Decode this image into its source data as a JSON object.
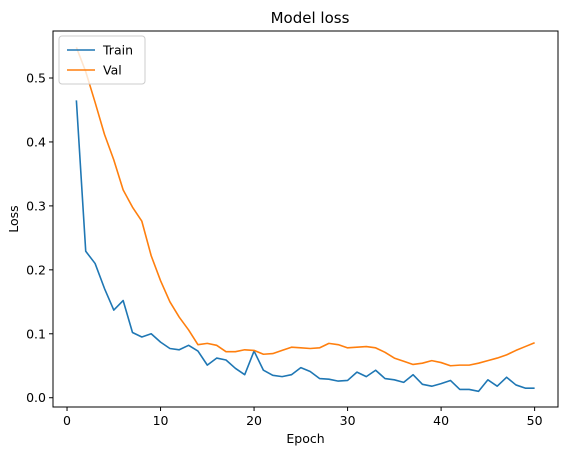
{
  "chart_data": {
    "type": "line",
    "title": "Model loss",
    "xlabel": "Epoch",
    "ylabel": "Loss",
    "xlim": [
      -1.5,
      52.5
    ],
    "ylim": [
      -0.0145,
      0.5735
    ],
    "xticks": [
      0,
      10,
      20,
      30,
      40,
      50
    ],
    "yticks": [
      0.0,
      0.1,
      0.2,
      0.3,
      0.4,
      0.5
    ],
    "xtick_labels": [
      "0",
      "10",
      "20",
      "30",
      "40",
      "50"
    ],
    "ytick_labels": [
      "0.0",
      "0.1",
      "0.2",
      "0.3",
      "0.4",
      "0.5"
    ],
    "grid": false,
    "legend_position": "top-left",
    "x": [
      1,
      2,
      3,
      4,
      5,
      6,
      7,
      8,
      9,
      10,
      11,
      12,
      13,
      14,
      15,
      16,
      17,
      18,
      19,
      20,
      21,
      22,
      23,
      24,
      25,
      26,
      27,
      28,
      29,
      30,
      31,
      32,
      33,
      34,
      35,
      36,
      37,
      38,
      39,
      40,
      41,
      42,
      43,
      44,
      45,
      46,
      47,
      48,
      49,
      50
    ],
    "series": [
      {
        "name": "Train",
        "color": "#1f77b4",
        "values": [
          0.465,
          0.229,
          0.21,
          0.171,
          0.137,
          0.152,
          0.102,
          0.095,
          0.1,
          0.087,
          0.077,
          0.075,
          0.082,
          0.073,
          0.051,
          0.062,
          0.059,
          0.046,
          0.036,
          0.073,
          0.043,
          0.035,
          0.033,
          0.036,
          0.047,
          0.041,
          0.03,
          0.029,
          0.026,
          0.027,
          0.04,
          0.033,
          0.043,
          0.03,
          0.028,
          0.024,
          0.036,
          0.021,
          0.018,
          0.022,
          0.027,
          0.013,
          0.013,
          0.01,
          0.028,
          0.018,
          0.032,
          0.02,
          0.015,
          0.015
        ]
      },
      {
        "name": "Val",
        "color": "#ff7f0e",
        "values": [
          0.548,
          0.51,
          0.462,
          0.412,
          0.372,
          0.325,
          0.298,
          0.276,
          0.222,
          0.183,
          0.15,
          0.126,
          0.106,
          0.083,
          0.085,
          0.082,
          0.072,
          0.072,
          0.075,
          0.074,
          0.068,
          0.069,
          0.074,
          0.079,
          0.078,
          0.077,
          0.078,
          0.085,
          0.083,
          0.078,
          0.079,
          0.08,
          0.078,
          0.071,
          0.062,
          0.057,
          0.052,
          0.054,
          0.058,
          0.055,
          0.05,
          0.051,
          0.051,
          0.054,
          0.058,
          0.062,
          0.067,
          0.074,
          0.08,
          0.086
        ]
      }
    ]
  }
}
